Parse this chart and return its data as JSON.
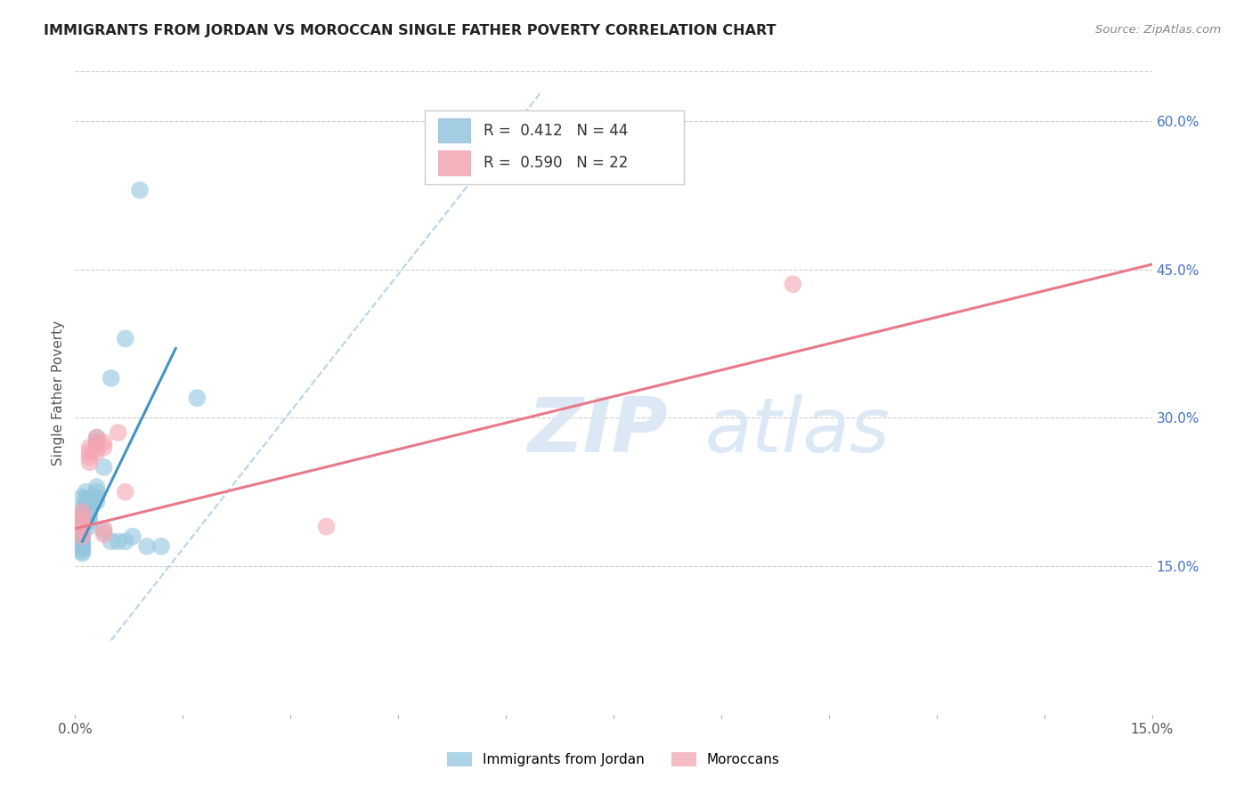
{
  "title": "IMMIGRANTS FROM JORDAN VS MOROCCAN SINGLE FATHER POVERTY CORRELATION CHART",
  "source": "Source: ZipAtlas.com",
  "ylabel_label": "Single Father Poverty",
  "xlim": [
    0.0,
    0.15
  ],
  "ylim": [
    0.0,
    0.65
  ],
  "xtick_positions": [
    0.0,
    0.015,
    0.03,
    0.045,
    0.06,
    0.075,
    0.09,
    0.105,
    0.12,
    0.135,
    0.15
  ],
  "xtick_labels": [
    "0.0%",
    "",
    "",
    "",
    "",
    "",
    "",
    "",
    "",
    "",
    "15.0%"
  ],
  "ytick_positions_right": [
    0.15,
    0.3,
    0.45,
    0.6
  ],
  "ytick_labels_right": [
    "15.0%",
    "30.0%",
    "45.0%",
    "60.0%"
  ],
  "legend_blue_label": "Immigrants from Jordan",
  "legend_pink_label": "Moroccans",
  "R_blue": "0.412",
  "N_blue": "44",
  "R_pink": "0.590",
  "N_pink": "22",
  "blue_color": "#92c5de",
  "pink_color": "#f4a6b2",
  "blue_line_color": "#4393c3",
  "pink_line_color": "#e8798a",
  "dashed_line_color": "#b8d4e8",
  "watermark_text": "ZIPatlas",
  "watermark_color": "#dde8f5",
  "jordan_points": [
    [
      0.001,
      0.22
    ],
    [
      0.001,
      0.21
    ],
    [
      0.001,
      0.205
    ],
    [
      0.001,
      0.2
    ],
    [
      0.001,
      0.195
    ],
    [
      0.001,
      0.19
    ],
    [
      0.001,
      0.185
    ],
    [
      0.001,
      0.182
    ],
    [
      0.001,
      0.178
    ],
    [
      0.001,
      0.175
    ],
    [
      0.001,
      0.172
    ],
    [
      0.001,
      0.17
    ],
    [
      0.001,
      0.168
    ],
    [
      0.001,
      0.165
    ],
    [
      0.001,
      0.163
    ],
    [
      0.0015,
      0.225
    ],
    [
      0.0015,
      0.218
    ],
    [
      0.0015,
      0.212
    ],
    [
      0.002,
      0.218
    ],
    [
      0.002,
      0.215
    ],
    [
      0.002,
      0.21
    ],
    [
      0.002,
      0.205
    ],
    [
      0.002,
      0.2
    ],
    [
      0.002,
      0.195
    ],
    [
      0.002,
      0.19
    ],
    [
      0.0025,
      0.215
    ],
    [
      0.003,
      0.23
    ],
    [
      0.003,
      0.225
    ],
    [
      0.003,
      0.22
    ],
    [
      0.003,
      0.215
    ],
    [
      0.003,
      0.28
    ],
    [
      0.003,
      0.275
    ],
    [
      0.004,
      0.25
    ],
    [
      0.004,
      0.185
    ],
    [
      0.005,
      0.34
    ],
    [
      0.005,
      0.175
    ],
    [
      0.006,
      0.175
    ],
    [
      0.007,
      0.38
    ],
    [
      0.007,
      0.175
    ],
    [
      0.008,
      0.18
    ],
    [
      0.009,
      0.53
    ],
    [
      0.01,
      0.17
    ],
    [
      0.012,
      0.17
    ],
    [
      0.017,
      0.32
    ]
  ],
  "moroccan_points": [
    [
      0.001,
      0.205
    ],
    [
      0.001,
      0.2
    ],
    [
      0.001,
      0.195
    ],
    [
      0.001,
      0.19
    ],
    [
      0.001,
      0.185
    ],
    [
      0.001,
      0.18
    ],
    [
      0.002,
      0.27
    ],
    [
      0.002,
      0.265
    ],
    [
      0.002,
      0.26
    ],
    [
      0.002,
      0.255
    ],
    [
      0.003,
      0.28
    ],
    [
      0.003,
      0.275
    ],
    [
      0.003,
      0.27
    ],
    [
      0.003,
      0.265
    ],
    [
      0.004,
      0.275
    ],
    [
      0.004,
      0.27
    ],
    [
      0.004,
      0.188
    ],
    [
      0.004,
      0.182
    ],
    [
      0.006,
      0.285
    ],
    [
      0.007,
      0.225
    ],
    [
      0.035,
      0.19
    ],
    [
      0.1,
      0.435
    ]
  ],
  "blue_trendline_x": [
    0.001,
    0.014
  ],
  "blue_trendline_y": [
    0.175,
    0.37
  ],
  "pink_trendline_x": [
    0.0,
    0.15
  ],
  "pink_trendline_y": [
    0.188,
    0.455
  ],
  "dashed_line_x": [
    0.005,
    0.065
  ],
  "dashed_line_y": [
    0.075,
    0.63
  ]
}
